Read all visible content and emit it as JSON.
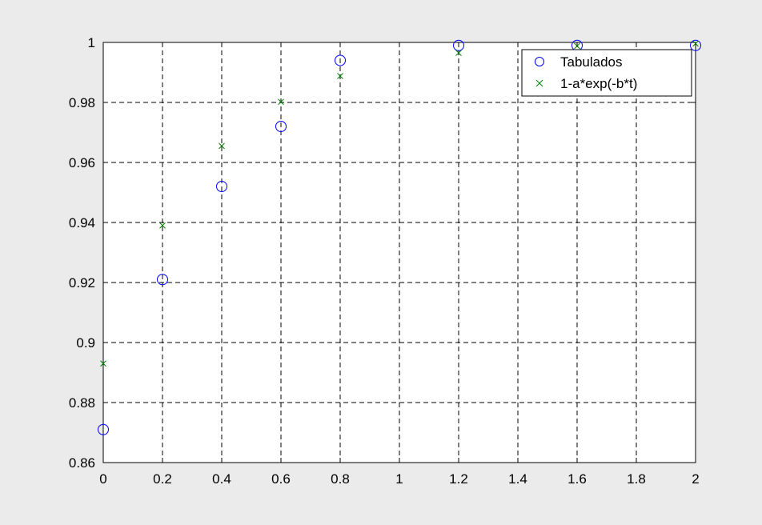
{
  "chart_data": {
    "type": "scatter",
    "title": "",
    "xlabel": "",
    "ylabel": "",
    "xlim": [
      0,
      2
    ],
    "ylim": [
      0.86,
      1
    ],
    "x_ticks": [
      0,
      0.2,
      0.4,
      0.6,
      0.8,
      1,
      1.2,
      1.4,
      1.6,
      1.8,
      2
    ],
    "x_tick_labels": [
      "0",
      "0.2",
      "0.4",
      "0.6",
      "0.8",
      "1",
      "1.2",
      "1.4",
      "1.6",
      "1.8",
      "2"
    ],
    "y_ticks": [
      0.86,
      0.88,
      0.9,
      0.92,
      0.94,
      0.96,
      0.98,
      1
    ],
    "y_tick_labels": [
      "0.86",
      "0.88",
      "0.9",
      "0.92",
      "0.94",
      "0.96",
      "0.98",
      "1"
    ],
    "grid": true,
    "legend_position": "top-right",
    "series": [
      {
        "name": "Tabulados",
        "marker": "circle",
        "color": "#0000ff",
        "x": [
          0,
          0.2,
          0.4,
          0.6,
          0.8,
          1.2,
          1.6,
          2
        ],
        "y": [
          0.871,
          0.921,
          0.952,
          0.972,
          0.994,
          0.999,
          0.999,
          0.999
        ]
      },
      {
        "name": "1-a*exp(-b*t)",
        "marker": "x",
        "color": "#008000",
        "x": [
          0,
          0.2,
          0.4,
          0.6,
          0.8,
          1.2,
          1.6,
          2
        ],
        "y": [
          0.893,
          0.939,
          0.9655,
          0.9802,
          0.9888,
          0.9965,
          0.9988,
          0.9996
        ]
      }
    ]
  },
  "colors": {
    "figure_background": "#ebebeb",
    "axes_background": "#ffffff",
    "grid": "#000000"
  }
}
